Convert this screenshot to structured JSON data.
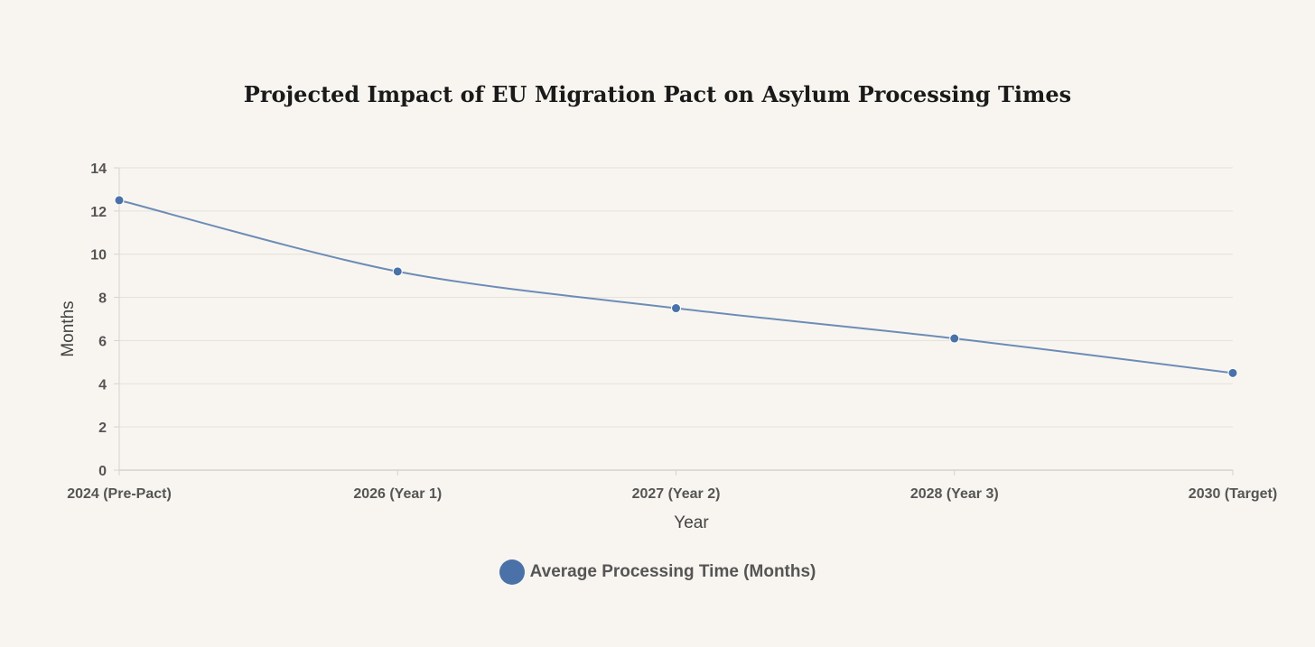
{
  "chart_data": {
    "type": "line",
    "title": "Projected Impact of EU Migration Pact on Asylum Processing Times",
    "xlabel": "Year",
    "ylabel": "Months",
    "categories": [
      "2024 (Pre-Pact)",
      "2026 (Year 1)",
      "2027 (Year 2)",
      "2028 (Year 3)",
      "2030 (Target)"
    ],
    "series": [
      {
        "name": "Average Processing Time (Months)",
        "values": [
          12.5,
          9.2,
          7.5,
          6.1,
          4.5
        ],
        "color": "#4a72a8"
      }
    ],
    "ylim": [
      0,
      14
    ],
    "yticks": [
      0,
      2,
      4,
      6,
      8,
      10,
      12,
      14
    ],
    "grid": true,
    "legend": "bottom-center"
  }
}
